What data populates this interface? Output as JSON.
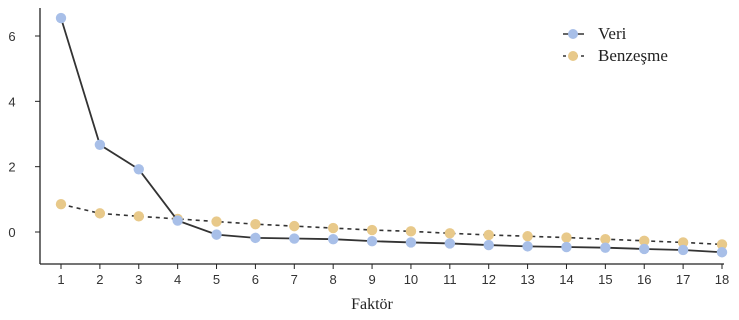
{
  "chart_data": {
    "type": "line",
    "xlabel": "Faktör",
    "ylabel": "",
    "xlim": [
      1,
      18
    ],
    "ylim": [
      -0.9,
      6.8
    ],
    "x_ticks": [
      "1",
      "2",
      "3",
      "4",
      "5",
      "6",
      "7",
      "8",
      "9",
      "10",
      "11",
      "12",
      "13",
      "14",
      "15",
      "16",
      "17",
      "18"
    ],
    "y_ticks": [
      "0",
      "2",
      "4",
      "6"
    ],
    "legend_position": "top-right",
    "grid": false,
    "series": [
      {
        "name": "Veri",
        "color": "#a8bfe8",
        "line_color": "#333333",
        "line_style": "solid",
        "x": [
          1,
          2,
          3,
          4,
          5,
          6,
          7,
          8,
          9,
          10,
          11,
          12,
          13,
          14,
          15,
          16,
          17,
          18
        ],
        "values": [
          6.55,
          2.67,
          1.92,
          0.35,
          -0.08,
          -0.18,
          -0.2,
          -0.22,
          -0.28,
          -0.32,
          -0.35,
          -0.4,
          -0.44,
          -0.46,
          -0.48,
          -0.52,
          -0.55,
          -0.62
        ]
      },
      {
        "name": "Benzeşme",
        "color": "#e8c98a",
        "line_color": "#333333",
        "line_style": "dashed",
        "x": [
          1,
          2,
          3,
          4,
          5,
          6,
          7,
          8,
          9,
          10,
          11,
          12,
          13,
          14,
          15,
          16,
          17,
          18
        ],
        "values": [
          0.85,
          0.57,
          0.48,
          0.4,
          0.32,
          0.24,
          0.18,
          0.12,
          0.06,
          0.02,
          -0.04,
          -0.09,
          -0.13,
          -0.17,
          -0.22,
          -0.27,
          -0.32,
          -0.38
        ]
      }
    ]
  }
}
